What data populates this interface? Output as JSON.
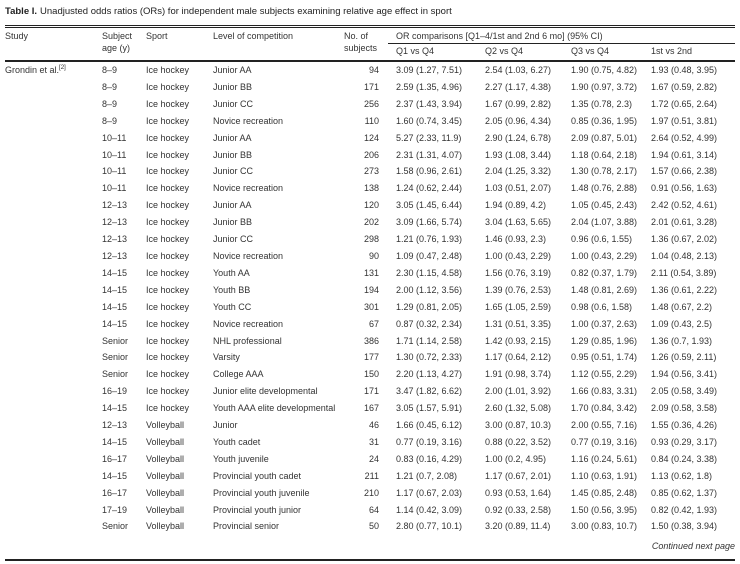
{
  "title": {
    "label": "Table I.",
    "text": "Unadjusted odds ratios (ORs) for independent male subjects examining relative age effect in sport"
  },
  "table": {
    "columns": {
      "study": "Study",
      "age": "Subject\nage (y)",
      "sport": "Sport",
      "level": "Level of competition",
      "subjects": "No. of\nsubjects",
      "or_group": "OR comparisons [Q1–4/1st and 2nd 6 mo] (95% CI)",
      "q1": "Q1 vs Q4",
      "q2": "Q2 vs Q4",
      "q3": "Q3 vs Q4",
      "first_second": "1st vs 2nd"
    },
    "study_citation": {
      "name": "Grondin et al.",
      "ref": "[2]"
    },
    "rows": [
      [
        "8–9",
        "Ice hockey",
        "Junior AA",
        "94",
        "3.09 (1.27, 7.51)",
        "2.54 (1.03, 6.27)",
        "1.90 (0.75, 4.82)",
        "1.93 (0.48, 3.95)"
      ],
      [
        "8–9",
        "Ice hockey",
        "Junior BB",
        "171",
        "2.59 (1.35, 4.96)",
        "2.27 (1.17, 4.38)",
        "1.90 (0.97, 3.72)",
        "1.67 (0.59, 2.82)"
      ],
      [
        "8–9",
        "Ice hockey",
        "Junior CC",
        "256",
        "2.37 (1.43, 3.94)",
        "1.67 (0.99, 2.82)",
        "1.35 (0.78, 2.3)",
        "1.72 (0.65, 2.64)"
      ],
      [
        "8–9",
        "Ice hockey",
        "Novice recreation",
        "110",
        "1.60 (0.74, 3.45)",
        "2.05 (0.96, 4.34)",
        "0.85 (0.36, 1.95)",
        "1.97 (0.51, 3.81)"
      ],
      [
        "10–11",
        "Ice hockey",
        "Junior AA",
        "124",
        "5.27 (2.33, 11.9)",
        "2.90 (1.24, 6.78)",
        "2.09 (0.87, 5.01)",
        "2.64 (0.52, 4.99)"
      ],
      [
        "10–11",
        "Ice hockey",
        "Junior BB",
        "206",
        "2.31 (1.31, 4.07)",
        "1.93 (1.08, 3.44)",
        "1.18 (0.64, 2.18)",
        "1.94 (0.61, 3.14)"
      ],
      [
        "10–11",
        "Ice hockey",
        "Junior CC",
        "273",
        "1.58 (0.96, 2.61)",
        "2.04 (1.25, 3.32)",
        "1.30 (0.78, 2.17)",
        "1.57 (0.66, 2.38)"
      ],
      [
        "10–11",
        "Ice hockey",
        "Novice recreation",
        "138",
        "1.24 (0.62, 2.44)",
        "1.03 (0.51, 2.07)",
        "1.48 (0.76, 2.88)",
        "0.91 (0.56, 1.63)"
      ],
      [
        "12–13",
        "Ice hockey",
        "Junior AA",
        "120",
        "3.05 (1.45, 6.44)",
        "1.94 (0.89, 4.2)",
        "1.05 (0.45, 2.43)",
        "2.42 (0.52, 4.61)"
      ],
      [
        "12–13",
        "Ice hockey",
        "Junior BB",
        "202",
        "3.09 (1.66, 5.74)",
        "3.04 (1.63, 5.65)",
        "2.04 (1.07, 3.88)",
        "2.01 (0.61, 3.28)"
      ],
      [
        "12–13",
        "Ice hockey",
        "Junior CC",
        "298",
        "1.21 (0.76, 1.93)",
        "1.46 (0.93, 2.3)",
        "0.96 (0.6, 1.55)",
        "1.36 (0.67, 2.02)"
      ],
      [
        "12–13",
        "Ice hockey",
        "Novice recreation",
        "90",
        "1.09 (0.47, 2.48)",
        "1.00 (0.43, 2.29)",
        "1.00 (0.43, 2.29)",
        "1.04 (0.48, 2.13)"
      ],
      [
        "14–15",
        "Ice hockey",
        "Youth AA",
        "131",
        "2.30 (1.15, 4.58)",
        "1.56 (0.76, 3.19)",
        "0.82 (0.37, 1.79)",
        "2.11 (0.54, 3.89)"
      ],
      [
        "14–15",
        "Ice hockey",
        "Youth BB",
        "194",
        "2.00 (1.12, 3.56)",
        "1.39 (0.76, 2.53)",
        "1.48 (0.81, 2.69)",
        "1.36 (0.61, 2.22)"
      ],
      [
        "14–15",
        "Ice hockey",
        "Youth CC",
        "301",
        "1.29 (0.81, 2.05)",
        "1.65 (1.05, 2.59)",
        "0.98 (0.6, 1.58)",
        "1.48 (0.67, 2.2)"
      ],
      [
        "14–15",
        "Ice hockey",
        "Novice recreation",
        "67",
        "0.87 (0.32, 2.34)",
        "1.31 (0.51, 3.35)",
        "1.00 (0.37, 2.63)",
        "1.09 (0.43, 2.5)"
      ],
      [
        "Senior",
        "Ice hockey",
        "NHL professional",
        "386",
        "1.71 (1.14, 2.58)",
        "1.42 (0.93, 2.15)",
        "1.29 (0.85, 1.96)",
        "1.36 (0.7, 1.93)"
      ],
      [
        "Senior",
        "Ice hockey",
        "Varsity",
        "177",
        "1.30 (0.72, 2.33)",
        "1.17 (0.64, 2.12)",
        "0.95 (0.51, 1.74)",
        "1.26 (0.59, 2.11)"
      ],
      [
        "Senior",
        "Ice hockey",
        "College AAA",
        "150",
        "2.20 (1.13, 4.27)",
        "1.91 (0.98, 3.74)",
        "1.12 (0.55, 2.29)",
        "1.94 (0.56, 3.41)"
      ],
      [
        "16–19",
        "Ice hockey",
        "Junior elite developmental",
        "171",
        "3.47 (1.82, 6.62)",
        "2.00 (1.01, 3.92)",
        "1.66 (0.83, 3.31)",
        "2.05 (0.58, 3.49)"
      ],
      [
        "14–15",
        "Ice hockey",
        "Youth AAA elite developmental",
        "167",
        "3.05 (1.57, 5.91)",
        "2.60 (1.32, 5.08)",
        "1.70 (0.84, 3.42)",
        "2.09 (0.58, 3.58)"
      ],
      [
        "12–13",
        "Volleyball",
        "Junior",
        "46",
        "1.66 (0.45, 6.12)",
        "3.00 (0.87, 10.3)",
        "2.00 (0.55, 7.16)",
        "1.55 (0.36, 4.26)"
      ],
      [
        "14–15",
        "Volleyball",
        "Youth cadet",
        "31",
        "0.77 (0.19, 3.16)",
        "0.88 (0.22, 3.52)",
        "0.77 (0.19, 3.16)",
        "0.93 (0.29, 3.17)"
      ],
      [
        "16–17",
        "Volleyball",
        "Youth juvenile",
        "24",
        "0.83 (0.16, 4.29)",
        "1.00 (0.2, 4.95)",
        "1.16 (0.24, 5.61)",
        "0.84 (0.24, 3.38)"
      ],
      [
        "14–15",
        "Volleyball",
        "Provincial youth cadet",
        "211",
        "1.21 (0.7, 2.08)",
        "1.17 (0.67, 2.01)",
        "1.10 (0.63, 1.91)",
        "1.13 (0.62, 1.8)"
      ],
      [
        "16–17",
        "Volleyball",
        "Provincial youth juvenile",
        "210",
        "1.17 (0.67, 2.03)",
        "0.93 (0.53, 1.64)",
        "1.45 (0.85, 2.48)",
        "0.85 (0.62, 1.37)"
      ],
      [
        "17–19",
        "Volleyball",
        "Provincial youth junior",
        "64",
        "1.14 (0.42, 3.09)",
        "0.92 (0.33, 2.58)",
        "1.50 (0.56, 3.95)",
        "0.82 (0.42, 1.93)"
      ],
      [
        "Senior",
        "Volleyball",
        "Provincial senior",
        "50",
        "2.80 (0.77, 10.1)",
        "3.20 (0.89, 11.4)",
        "3.00 (0.83, 10.7)",
        "1.50 (0.38, 3.94)"
      ]
    ],
    "footer": "Continued next page"
  }
}
